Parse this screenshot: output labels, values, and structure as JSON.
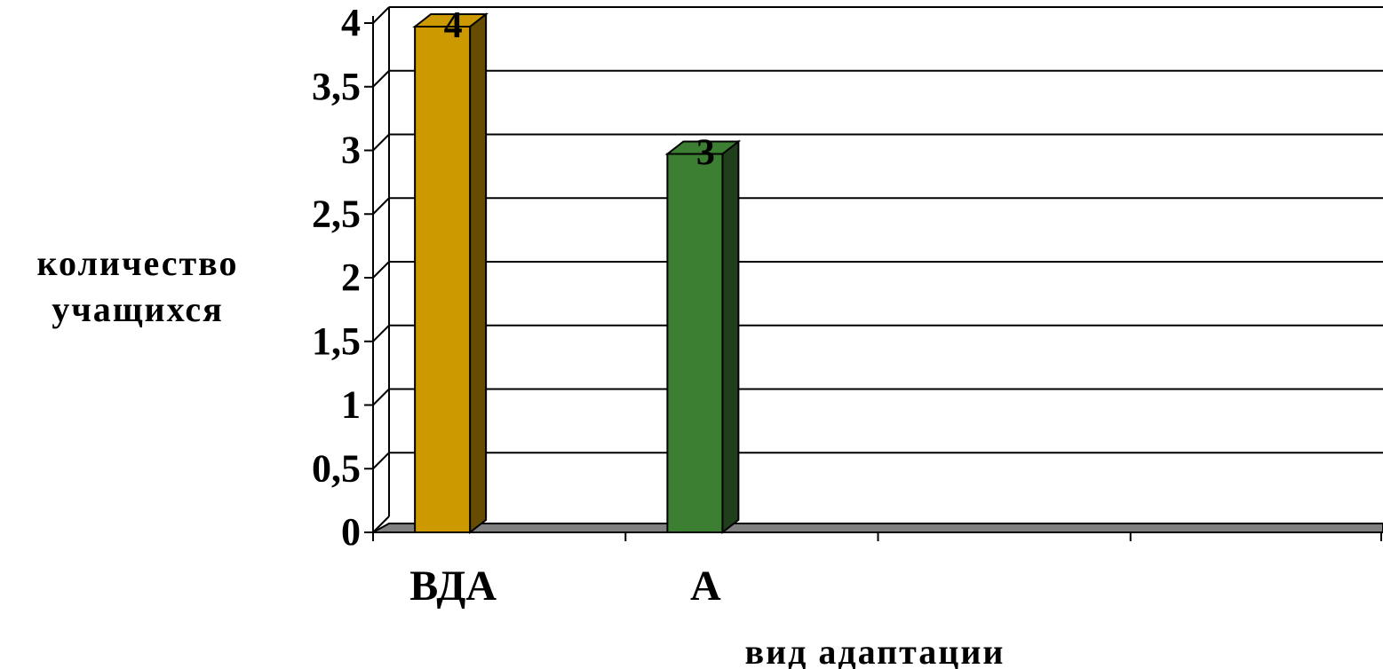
{
  "chart_data": {
    "type": "bar",
    "categories": [
      "ВДА",
      "А",
      "",
      ""
    ],
    "values": [
      4,
      3,
      null,
      null
    ],
    "data_labels": [
      "4",
      "3",
      "",
      ""
    ],
    "title": "",
    "xlabel": "вид адаптации",
    "ylabel": "количество учащихся",
    "ylabel_lines": [
      "количество",
      "учащихся"
    ],
    "ylim": [
      0,
      4
    ],
    "yticks": [
      0,
      0.5,
      1,
      1.5,
      2,
      2.5,
      3,
      3.5,
      4
    ],
    "ytick_labels": [
      "0",
      "0,5",
      "1",
      "1,5",
      "2",
      "2,5",
      "3",
      "3,5",
      "4"
    ],
    "grid": true,
    "legend": "none",
    "colors": {
      "bars": [
        "#CC9900",
        "#3C7F32"
      ],
      "bar_sides": [
        "#664C00",
        "#1E3F19"
      ],
      "floor": "#808080",
      "grid": "#000000"
    }
  }
}
